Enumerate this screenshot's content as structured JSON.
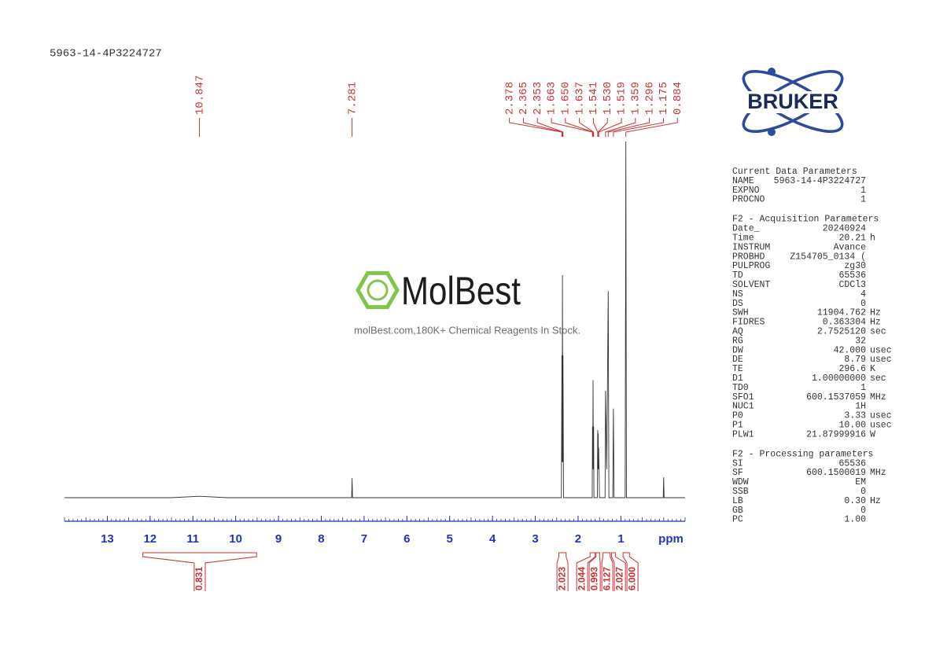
{
  "chart_data": {
    "type": "nmr",
    "title": "5963-14-4P3224727",
    "x_label": "ppm",
    "xlim": [
      14.0,
      -0.5
    ],
    "xticks": [
      13,
      12,
      11,
      10,
      9,
      8,
      7,
      6,
      5,
      4,
      3,
      2,
      1
    ],
    "ylim": [
      0,
      100
    ],
    "color": "#333333",
    "x": [
      14.0,
      11.5,
      10.85,
      10.2,
      7.29,
      7.281,
      7.27,
      2.39,
      2.378,
      2.372,
      2.365,
      2.358,
      2.353,
      2.34,
      1.67,
      1.663,
      1.657,
      1.65,
      1.643,
      1.637,
      1.63,
      1.55,
      1.541,
      1.535,
      1.53,
      1.524,
      1.519,
      1.5,
      1.37,
      1.359,
      1.33,
      1.296,
      1.28,
      1.19,
      1.175,
      1.16,
      0.9,
      0.884,
      0.87,
      0.01,
      0.0,
      -0.01,
      -0.5
    ],
    "values": [
      0,
      0,
      0.4,
      0,
      0,
      5.5,
      0,
      0,
      40,
      10,
      62.5,
      10,
      40,
      0,
      0,
      20,
      8,
      33,
      8,
      20,
      0,
      0,
      19,
      8,
      18,
      8,
      14,
      0,
      0,
      30,
      8,
      58,
      0,
      0,
      25,
      0,
      0,
      100,
      0,
      0,
      5.7,
      0,
      0
    ],
    "peaks": {
      "values": [
        10.847,
        7.281,
        2.378,
        2.365,
        2.353,
        1.663,
        1.65,
        1.637,
        1.541,
        1.53,
        1.519,
        1.359,
        1.296,
        1.175,
        0.884
      ],
      "value_labels": [
        "10.847",
        "7.281",
        "2.378",
        "2.365",
        "2.353",
        "1.663",
        "1.650",
        "1.637",
        "1.541",
        "1.530",
        "1.519",
        "1.359",
        "1.296",
        "1.175",
        "0.884"
      ],
      "color": "#c83232"
    },
    "integrals": {
      "ranges": [
        [
          12.17,
          9.51
        ],
        [
          2.45,
          2.28
        ],
        [
          1.72,
          1.6
        ],
        [
          1.58,
          1.5
        ],
        [
          1.42,
          1.25
        ],
        [
          1.22,
          1.13
        ],
        [
          0.95,
          0.8
        ]
      ],
      "values": [
        0.831,
        2.023,
        2.044,
        0.993,
        6.127,
        2.027,
        6
      ],
      "value_labels": [
        "0.831",
        "2.023",
        "2.044",
        "0.993",
        "6.127",
        "2.027",
        "6.000"
      ],
      "color": "#c83232"
    }
  },
  "watermark": {
    "brand": "MolBest",
    "tagline": "molBest.com,180K+ Chemical Reagents In Stock."
  },
  "logo": "BRUKER",
  "parameters": [
    {
      "title": "Current Data Parameters",
      "rows": [
        [
          "NAME",
          "5963-14-4P3224727"
        ],
        [
          "EXPNO",
          "1"
        ],
        [
          "PROCNO",
          "1"
        ]
      ]
    },
    {
      "title": "F2 - Acquisition Parameters",
      "rows": [
        [
          "Date_",
          "20240924"
        ],
        [
          "Time",
          "20.21",
          "h"
        ],
        [
          "INSTRUM",
          "Avance"
        ],
        [
          "PROBHD",
          "Z154705_0134 ("
        ],
        [
          "PULPROG",
          "zg30"
        ],
        [
          "TD",
          "65536"
        ],
        [
          "SOLVENT",
          "CDCl3"
        ],
        [
          "NS",
          "4"
        ],
        [
          "DS",
          "0"
        ],
        [
          "SWH",
          "11904.762",
          "Hz"
        ],
        [
          "FIDRES",
          "0.363304",
          "Hz"
        ],
        [
          "AQ",
          "2.7525120",
          "sec"
        ],
        [
          "RG",
          "32"
        ],
        [
          "DW",
          "42.000",
          "usec"
        ],
        [
          "DE",
          "8.79",
          "usec"
        ],
        [
          "TE",
          "296.6",
          "K"
        ],
        [
          "D1",
          "1.00000000",
          "sec"
        ],
        [
          "TD0",
          "1"
        ],
        [
          "SFO1",
          "600.1537059",
          "MHz"
        ],
        [
          "NUC1",
          "1H"
        ],
        [
          "P0",
          "3.33",
          "usec"
        ],
        [
          "P1",
          "10.00",
          "usec"
        ],
        [
          "PLW1",
          "21.87999916",
          "W"
        ]
      ]
    },
    {
      "title": "F2 - Processing parameters",
      "rows": [
        [
          "SI",
          "65536"
        ],
        [
          "SF",
          "600.1500019",
          "MHz"
        ],
        [
          "WDW",
          "EM"
        ],
        [
          "SSB",
          "0"
        ],
        [
          "LB",
          "0.30",
          "Hz"
        ],
        [
          "GB",
          "0"
        ],
        [
          "PC",
          "1.00"
        ]
      ]
    }
  ]
}
